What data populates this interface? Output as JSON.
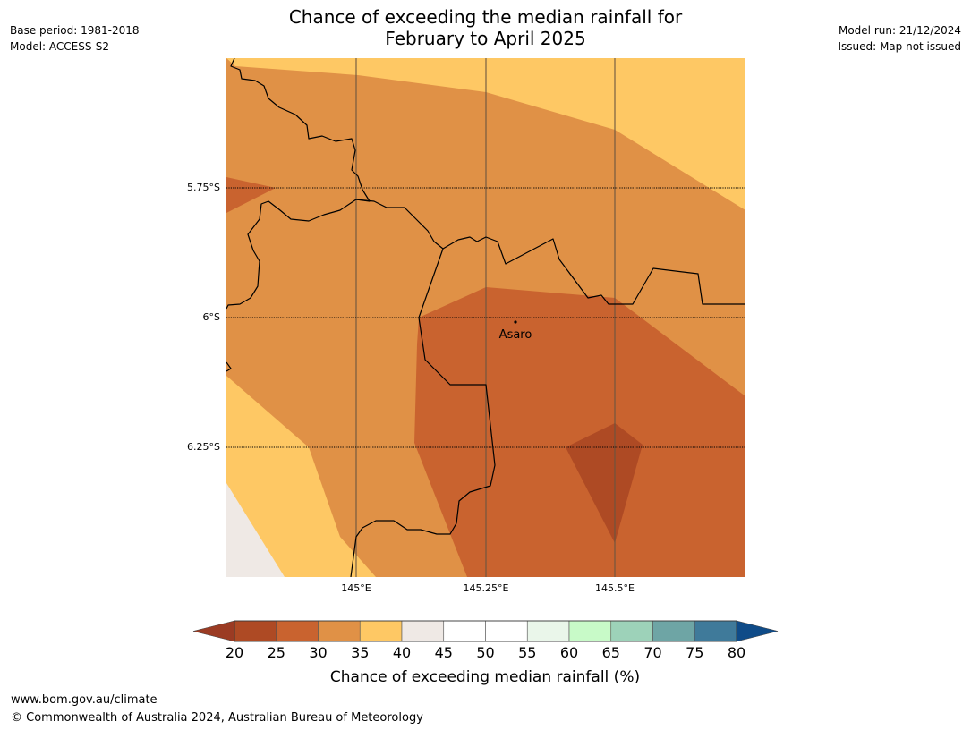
{
  "header": {
    "title_line1": "Chance of exceeding the median rainfall for",
    "title_line2": "February to April 2025",
    "base_period": "Base period: 1981-2018",
    "model": "Model: ACCESS-S2",
    "model_run": "Model run: 21/12/2024",
    "issued": "Issued: Map not issued"
  },
  "map": {
    "lat_labels": [
      "5.75°S",
      "6°S",
      "6.25°S"
    ],
    "lon_labels": [
      "145°E",
      "145.25°E",
      "145.5°E"
    ],
    "place": {
      "name": "Asaro",
      "lon": 145.3,
      "lat": -6.01
    },
    "fill_colors": {
      "25_30": "#c9632f",
      "30_35": "#e09146",
      "35_40": "#fec864",
      "40_45": "#efe9e5",
      "20_25": "#ae4a24"
    }
  },
  "colorbar": {
    "label": "Chance of exceeding median rainfall (%)",
    "ticks": [
      "20",
      "25",
      "30",
      "35",
      "40",
      "45",
      "50",
      "55",
      "60",
      "65",
      "70",
      "75",
      "80"
    ],
    "under_color": "#9b3b23",
    "over_color": "#0f4b88",
    "colors": [
      "#ae4a24",
      "#c9632f",
      "#e09146",
      "#fec864",
      "#efe9e5",
      "#ffffff",
      "#ffffff",
      "#eaf6ea",
      "#c8fac8",
      "#9dd2b9",
      "#6ea5a5",
      "#3f7a9a"
    ]
  },
  "footer": {
    "url": "www.bom.gov.au/climate",
    "copyright": "© Commonwealth of Australia 2024, Australian Bureau of Meteorology"
  }
}
